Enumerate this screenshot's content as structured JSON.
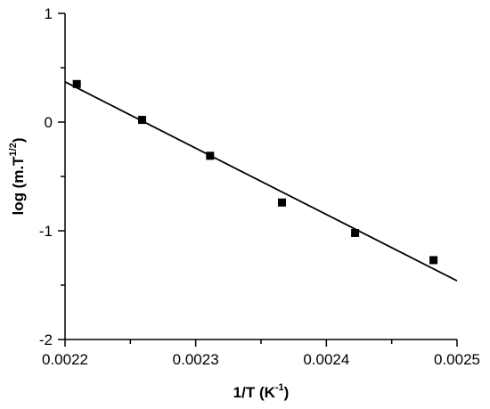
{
  "chart_data": {
    "type": "scatter",
    "xlabel": "1/T (K",
    "xlabel_sup": "-1",
    "xlabel_end": ")",
    "ylabel": "log (m.T",
    "ylabel_sup": "1/2",
    "ylabel_end": ")",
    "xlim": [
      0.0022,
      0.0025
    ],
    "ylim": [
      -2,
      1
    ],
    "x_ticks": [
      0.0022,
      0.0023,
      0.0024,
      0.0025
    ],
    "x_tick_labels": [
      "0.0022",
      "0.0023",
      "0.0024",
      "0.0025"
    ],
    "y_ticks": [
      -2,
      -1,
      0,
      1
    ],
    "y_tick_labels": [
      "-2",
      "-1",
      "0",
      "1"
    ],
    "points": {
      "x": [
        0.002209,
        0.002259,
        0.002311,
        0.002366,
        0.002422,
        0.002482
      ],
      "y": [
        0.35,
        0.02,
        -0.31,
        -0.74,
        -1.02,
        -1.27
      ]
    },
    "fit_line": {
      "x": [
        0.0022,
        0.0025
      ],
      "y": [
        0.37,
        -1.46
      ]
    },
    "grid": false,
    "legend": "none"
  }
}
